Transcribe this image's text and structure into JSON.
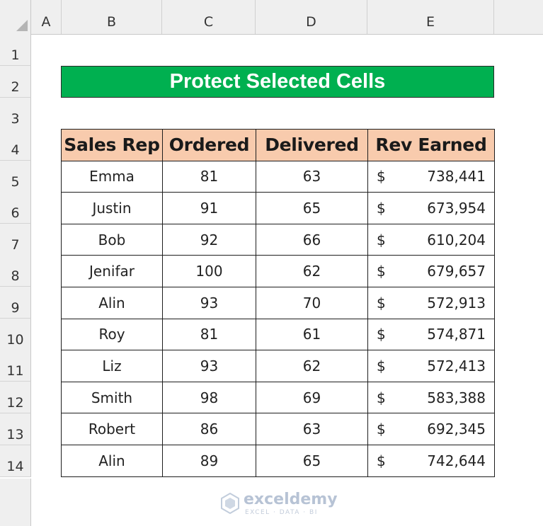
{
  "columns": [
    "A",
    "B",
    "C",
    "D",
    "E"
  ],
  "rows": [
    "1",
    "2",
    "3",
    "4",
    "5",
    "6",
    "7",
    "8",
    "9",
    "10",
    "11",
    "12",
    "13",
    "14"
  ],
  "title": "Protect Selected Cells",
  "table": {
    "headers": [
      "Sales Rep",
      "Ordered",
      "Delivered",
      "Rev Earned"
    ],
    "currency_symbol": "$",
    "rows": [
      {
        "rep": "Emma",
        "ordered": "81",
        "delivered": "63",
        "rev": "738,441"
      },
      {
        "rep": "Justin",
        "ordered": "91",
        "delivered": "65",
        "rev": "673,954"
      },
      {
        "rep": "Bob",
        "ordered": "92",
        "delivered": "66",
        "rev": "610,204"
      },
      {
        "rep": "Jenifar",
        "ordered": "100",
        "delivered": "62",
        "rev": "679,657"
      },
      {
        "rep": "Alin",
        "ordered": "93",
        "delivered": "70",
        "rev": "572,913"
      },
      {
        "rep": "Roy",
        "ordered": "81",
        "delivered": "61",
        "rev": "574,871"
      },
      {
        "rep": "Liz",
        "ordered": "93",
        "delivered": "62",
        "rev": "572,413"
      },
      {
        "rep": "Smith",
        "ordered": "98",
        "delivered": "69",
        "rev": "583,388"
      },
      {
        "rep": "Robert",
        "ordered": "86",
        "delivered": "63",
        "rev": "692,345"
      },
      {
        "rep": "Alin",
        "ordered": "89",
        "delivered": "65",
        "rev": "742,644"
      }
    ]
  },
  "watermark": {
    "name": "exceldemy",
    "tagline": "EXCEL · DATA · BI",
    "icon": "exceldemy-logo-icon"
  },
  "colors": {
    "title_bg": "#00b050",
    "header_bg": "#f8cbad",
    "grid_header_bg": "#efefef"
  }
}
